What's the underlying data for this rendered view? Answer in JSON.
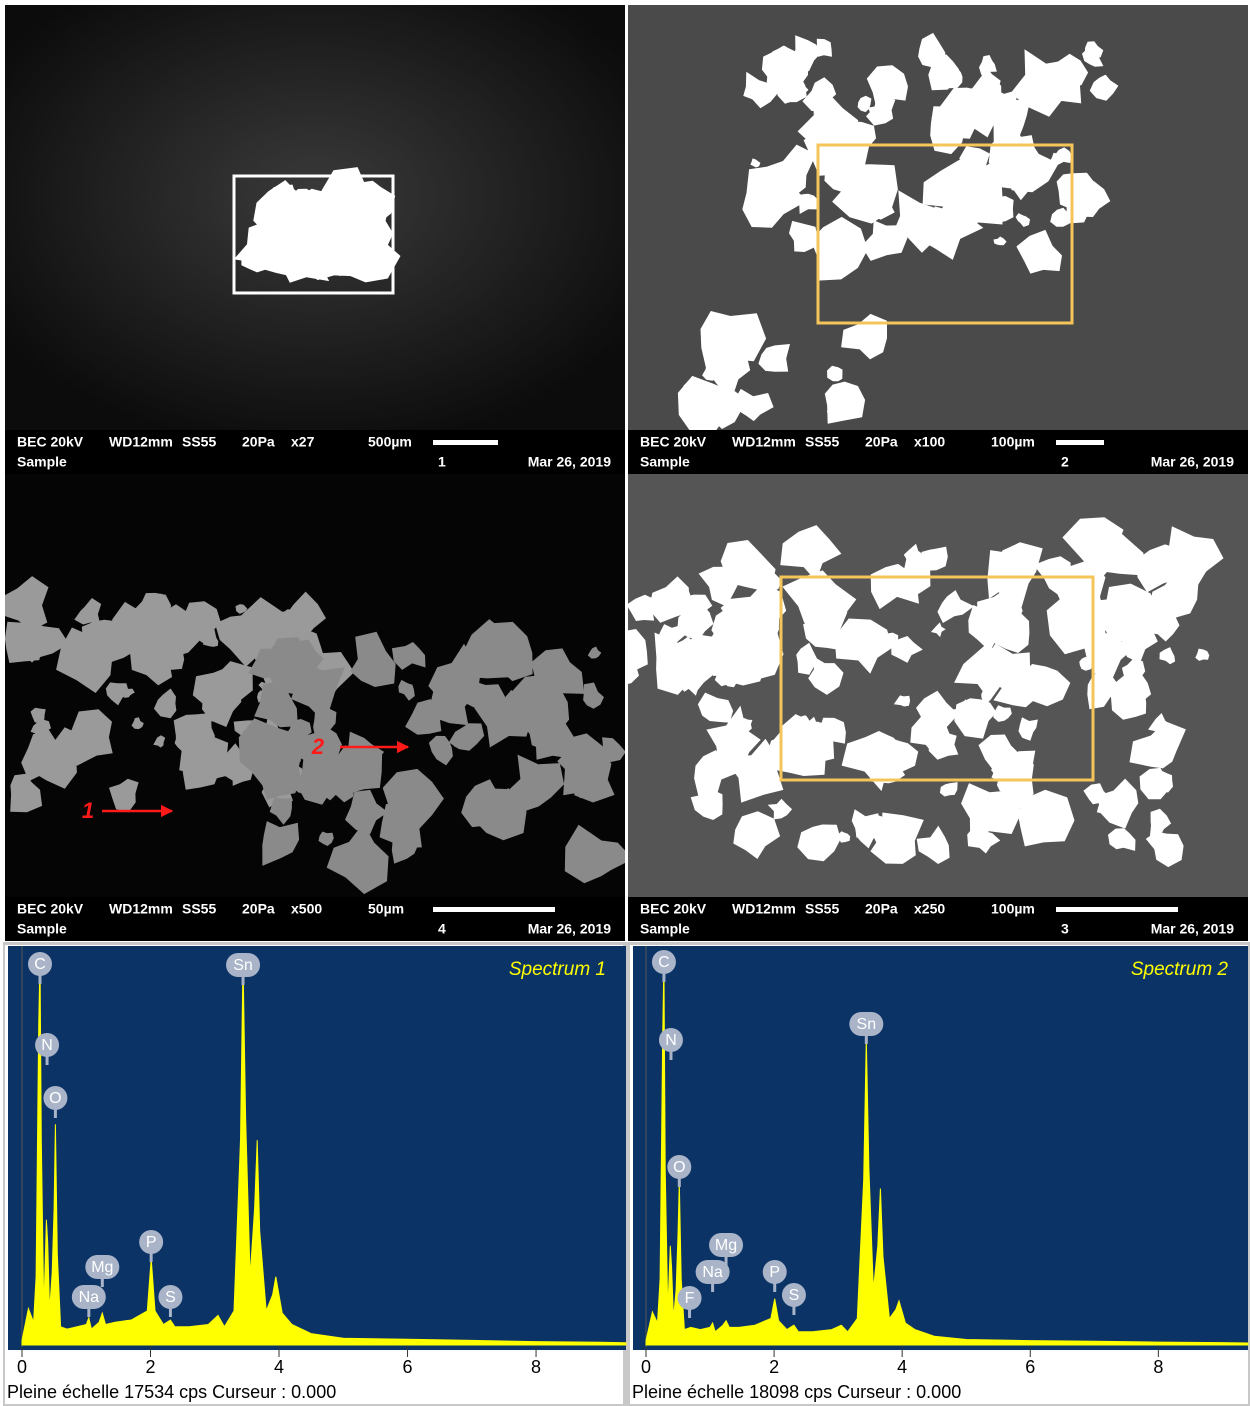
{
  "panels": [
    {
      "mode": "BEC 20kV",
      "wd": "WD12mm",
      "ss": "SS55",
      "pressure": "20Pa",
      "magnification": "x27",
      "scale": "500µm",
      "number": "1",
      "date": "Mar 26, 2019",
      "label": "Sample"
    },
    {
      "mode": "BEC 20kV",
      "wd": "WD12mm",
      "ss": "SS55",
      "pressure": "20Pa",
      "magnification": "x100",
      "scale": "100µm",
      "number": "2",
      "date": "Mar 26, 2019",
      "label": "Sample"
    },
    {
      "mode": "BEC 20kV",
      "wd": "WD12mm",
      "ss": "SS55",
      "pressure": "20Pa",
      "magnification": "x500",
      "scale": "50µm",
      "number": "4",
      "date": "Mar 26, 2019",
      "label": "Sample",
      "arrows": [
        "1",
        "2"
      ]
    },
    {
      "mode": "BEC 20kV",
      "wd": "WD12mm",
      "ss": "SS55",
      "pressure": "20Pa",
      "magnification": "x250",
      "scale": "100µm",
      "number": "3",
      "date": "Mar 26, 2019",
      "label": "Sample"
    }
  ],
  "chart_data": [
    {
      "type": "area",
      "title": "Spectrum 1",
      "footer": "Pleine échelle 17534 cps  Curseur : 0.000",
      "color": "#ffff00",
      "background": "#0b3366",
      "xlim": [
        0,
        9.4
      ],
      "xticks": [
        0,
        2,
        4,
        6,
        8
      ],
      "ylim": [
        0,
        17534
      ],
      "x": [
        0,
        0.1,
        0.18,
        0.22,
        0.26,
        0.28,
        0.3,
        0.34,
        0.38,
        0.4,
        0.43,
        0.47,
        0.5,
        0.52,
        0.55,
        0.6,
        0.7,
        0.85,
        1.0,
        1.04,
        1.08,
        1.2,
        1.25,
        1.3,
        1.45,
        1.7,
        1.95,
        2.01,
        2.07,
        2.2,
        2.31,
        2.38,
        2.6,
        2.9,
        3.05,
        3.15,
        3.3,
        3.4,
        3.44,
        3.48,
        3.55,
        3.62,
        3.66,
        3.7,
        3.8,
        3.9,
        3.95,
        4.05,
        4.2,
        4.5,
        5,
        6,
        7,
        8,
        9,
        9.4
      ],
      "values": [
        200,
        1600,
        1000,
        3000,
        14000,
        17000,
        9000,
        1500,
        5500,
        4500,
        1500,
        3200,
        6000,
        9700,
        4000,
        800,
        700,
        800,
        900,
        1200,
        700,
        1000,
        1400,
        900,
        1000,
        1100,
        1500,
        3800,
        1500,
        900,
        1100,
        800,
        800,
        900,
        1300,
        800,
        1500,
        9000,
        16900,
        10000,
        3000,
        6000,
        9000,
        5000,
        1500,
        2200,
        3000,
        1400,
        900,
        500,
        300,
        250,
        200,
        150,
        120,
        100
      ],
      "peaks": [
        {
          "label": "C",
          "x": 0.28
        },
        {
          "label": "N",
          "x": 0.39
        },
        {
          "label": "O",
          "x": 0.52
        },
        {
          "label": "Na",
          "x": 1.04
        },
        {
          "label": "Mg",
          "x": 1.25
        },
        {
          "label": "P",
          "x": 2.01
        },
        {
          "label": "S",
          "x": 2.31
        },
        {
          "label": "Sn",
          "x": 3.44
        }
      ]
    },
    {
      "type": "area",
      "title": "Spectrum 2",
      "footer": "Pleine échelle 18098 cps  Curseur : 0.000",
      "color": "#ffff00",
      "background": "#0b3366",
      "xlim": [
        0,
        9.4
      ],
      "xticks": [
        0,
        2,
        4,
        6,
        8
      ],
      "ylim": [
        0,
        18098
      ],
      "x": [
        0,
        0.1,
        0.18,
        0.22,
        0.26,
        0.28,
        0.3,
        0.34,
        0.38,
        0.4,
        0.43,
        0.47,
        0.5,
        0.52,
        0.55,
        0.6,
        0.7,
        0.85,
        1.0,
        1.04,
        1.08,
        1.2,
        1.25,
        1.3,
        1.45,
        1.7,
        1.95,
        2.01,
        2.07,
        2.2,
        2.31,
        2.38,
        2.6,
        2.9,
        3.05,
        3.15,
        3.3,
        3.4,
        3.44,
        3.48,
        3.55,
        3.62,
        3.66,
        3.7,
        3.8,
        3.9,
        3.95,
        4.05,
        4.2,
        4.5,
        5,
        6,
        7,
        8,
        9,
        9.4
      ],
      "values": [
        200,
        1500,
        1000,
        3000,
        14000,
        17500,
        8000,
        1500,
        4500,
        3500,
        1200,
        2500,
        5000,
        7400,
        3000,
        700,
        800,
        700,
        800,
        1000,
        600,
        900,
        1100,
        800,
        800,
        900,
        1200,
        2100,
        1100,
        700,
        900,
        600,
        600,
        700,
        900,
        600,
        1200,
        7500,
        13900,
        8000,
        2500,
        4500,
        7100,
        4000,
        1200,
        1600,
        2000,
        1000,
        700,
        400,
        250,
        200,
        170,
        130,
        110,
        90
      ],
      "peaks": [
        {
          "label": "C",
          "x": 0.28
        },
        {
          "label": "N",
          "x": 0.39
        },
        {
          "label": "O",
          "x": 0.52
        },
        {
          "label": "F",
          "x": 0.68
        },
        {
          "label": "Na",
          "x": 1.04
        },
        {
          "label": "Mg",
          "x": 1.25
        },
        {
          "label": "P",
          "x": 2.01
        },
        {
          "label": "S",
          "x": 2.31
        },
        {
          "label": "Sn",
          "x": 3.44
        }
      ]
    }
  ]
}
